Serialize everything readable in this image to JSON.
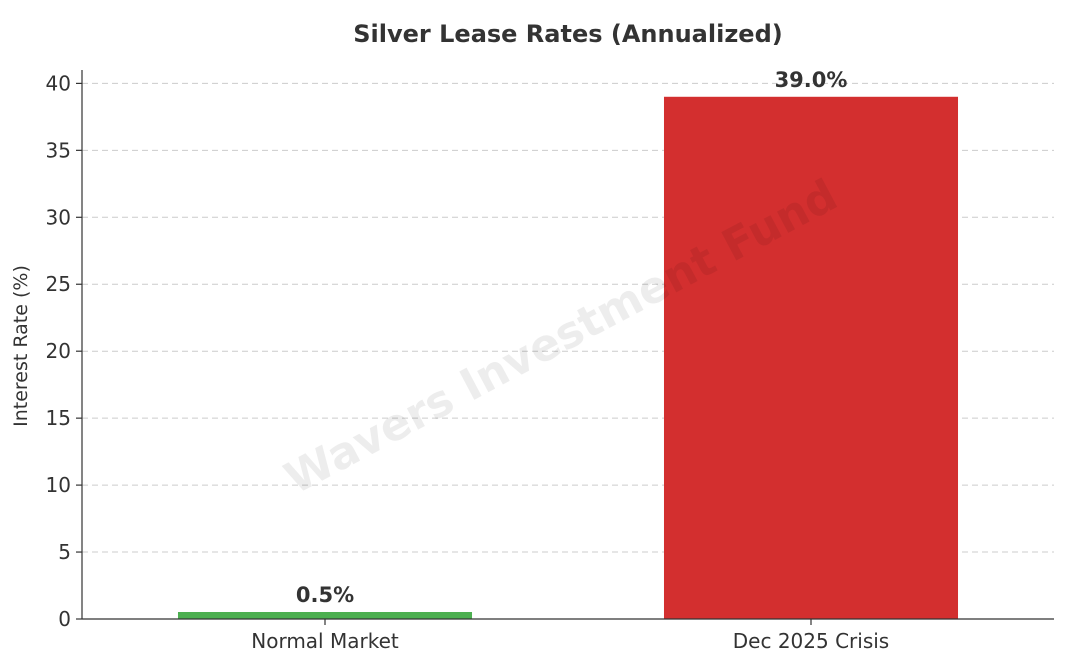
{
  "chart_data": {
    "type": "bar",
    "title": "Silver Lease Rates (Annualized)",
    "xlabel": "",
    "ylabel": "Interest Rate (%)",
    "categories": [
      "Normal Market",
      "Dec 2025 Crisis"
    ],
    "values": [
      0.5,
      39.0
    ],
    "data_labels": [
      "0.5%",
      "39.0%"
    ],
    "colors": [
      "#4caf50",
      "#d32f2f"
    ],
    "ylim": [
      0,
      41
    ],
    "yticks": [
      0,
      5,
      10,
      15,
      20,
      25,
      30,
      35,
      40
    ],
    "grid": true,
    "grid_axis": "y",
    "legend": "none"
  },
  "watermark": {
    "text": "Wavers Investment Fund"
  }
}
